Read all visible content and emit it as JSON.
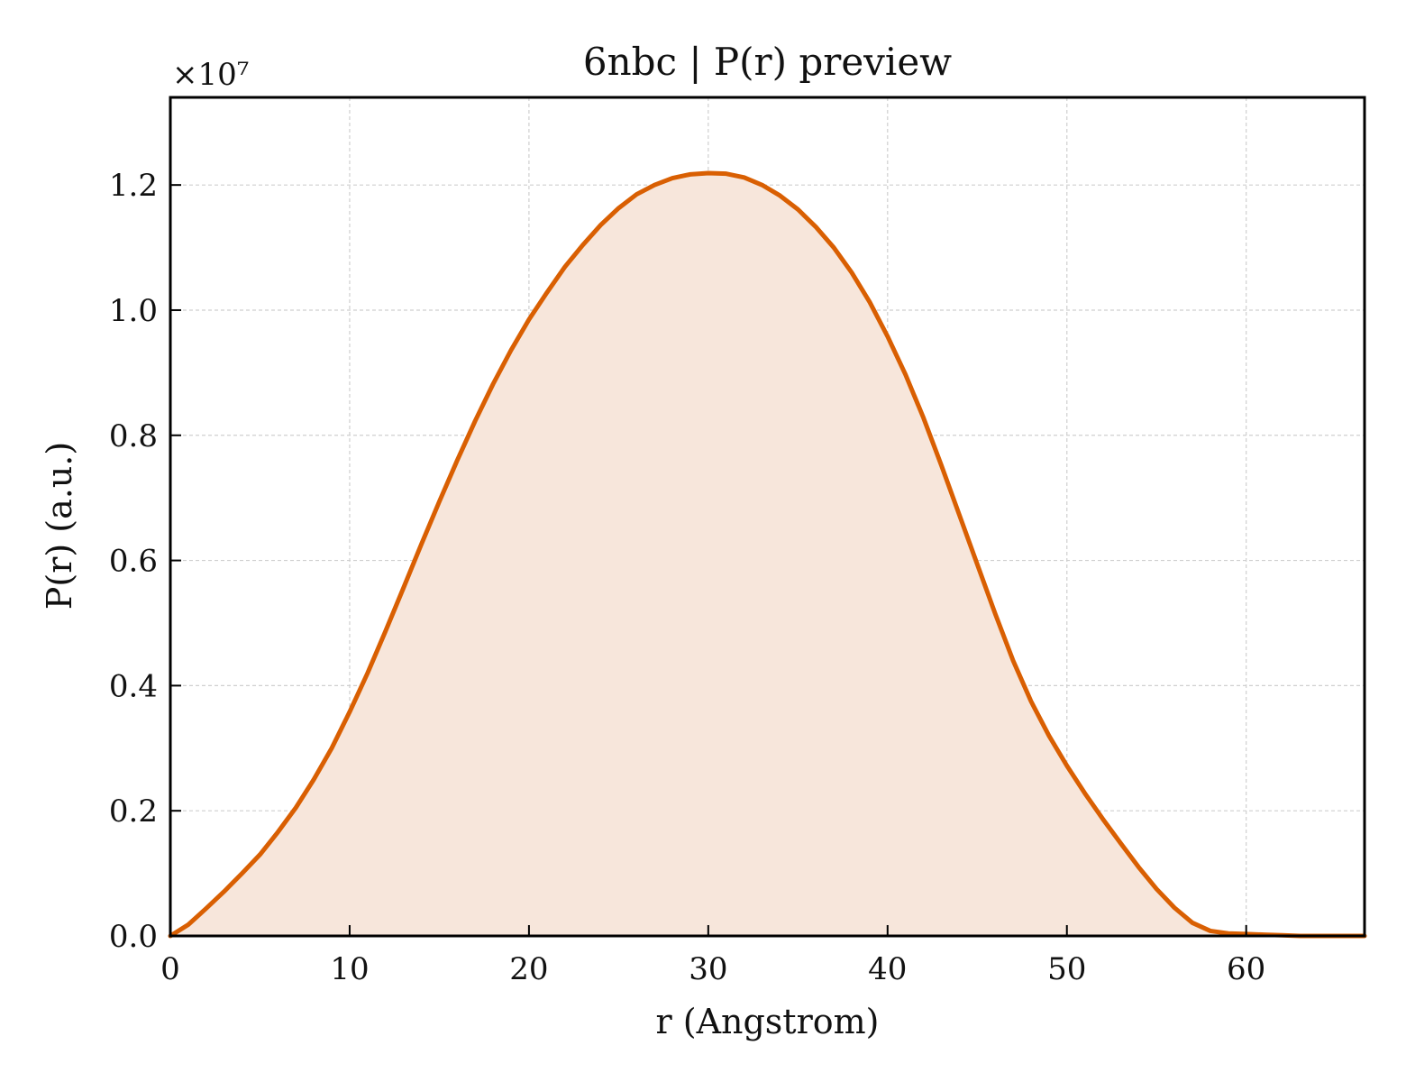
{
  "chart_data": {
    "type": "area",
    "title": "6nbc | P(r) preview",
    "xlabel": "r (Angstrom)",
    "ylabel": "P(r) (a.u.)",
    "y_multiplier_label": "×10⁷",
    "x_ticks": [
      "0",
      "10",
      "20",
      "30",
      "40",
      "50",
      "60"
    ],
    "y_ticks": [
      "0.0",
      "0.2",
      "0.4",
      "0.6",
      "0.8",
      "1.0",
      "1.2"
    ],
    "xlim": [
      0,
      66.6
    ],
    "ylim": [
      0,
      1.34
    ],
    "grid": true,
    "series": [
      {
        "color": "#d95f02",
        "fill_color": "#f7e6db",
        "x": [
          0,
          1,
          2,
          3,
          4,
          5,
          6,
          7,
          8,
          9,
          10,
          11,
          12,
          13,
          14,
          15,
          16,
          17,
          18,
          19,
          20,
          21,
          22,
          23,
          24,
          25,
          26,
          27,
          28,
          29,
          30,
          31,
          32,
          33,
          34,
          35,
          36,
          37,
          38,
          39,
          40,
          41,
          42,
          43,
          44,
          45,
          46,
          47,
          48,
          49,
          50,
          51,
          52,
          53,
          54,
          55,
          56,
          57,
          58,
          59,
          60,
          61,
          62,
          63,
          64,
          65,
          66,
          66.6
        ],
        "values": [
          0.0,
          0.018,
          0.044,
          0.071,
          0.1,
          0.13,
          0.166,
          0.205,
          0.25,
          0.3,
          0.358,
          0.42,
          0.487,
          0.556,
          0.626,
          0.694,
          0.76,
          0.823,
          0.882,
          0.936,
          0.985,
          1.028,
          1.069,
          1.104,
          1.136,
          1.163,
          1.185,
          1.2,
          1.211,
          1.217,
          1.219,
          1.218,
          1.212,
          1.2,
          1.183,
          1.161,
          1.133,
          1.1,
          1.06,
          1.013,
          0.958,
          0.897,
          0.828,
          0.752,
          0.673,
          0.594,
          0.515,
          0.44,
          0.375,
          0.32,
          0.272,
          0.228,
          0.187,
          0.148,
          0.11,
          0.075,
          0.045,
          0.021,
          0.008,
          0.004,
          0.003,
          0.002,
          0.001,
          0.0,
          0.0,
          0.0,
          0.0,
          0.0
        ]
      }
    ]
  }
}
